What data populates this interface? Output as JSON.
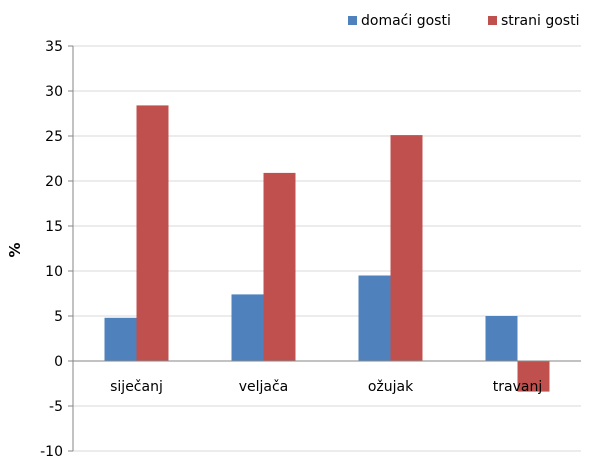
{
  "chart_data": {
    "type": "bar",
    "categories": [
      "siječanj",
      "veljača",
      "ožujak",
      "travanj"
    ],
    "series": [
      {
        "name": "domaći gosti",
        "color": "#4f81bd",
        "values": [
          4.8,
          7.4,
          9.5,
          5.0
        ]
      },
      {
        "name": "strani gosti",
        "color": "#c0504d",
        "values": [
          28.4,
          20.9,
          25.1,
          -3.4
        ]
      }
    ],
    "title": "",
    "xlabel": "",
    "ylabel": "%",
    "ylim": [
      -10,
      35
    ],
    "yticks": [
      -10,
      -5,
      0,
      5,
      10,
      15,
      20,
      25,
      30,
      35
    ],
    "grid": true,
    "legend_position": "top-right"
  }
}
